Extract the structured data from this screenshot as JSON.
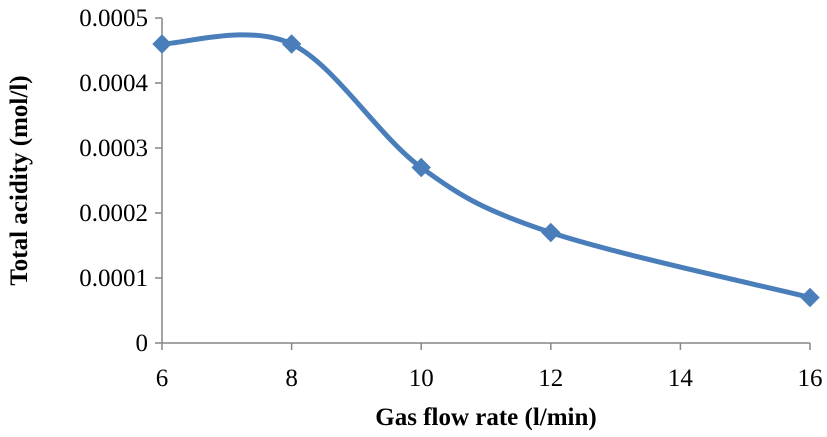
{
  "chart_data": {
    "type": "line",
    "title": "",
    "xlabel": "Gas flow rate (l/min)",
    "ylabel": "Total acidity (mol/l)",
    "xlim": [
      6,
      16
    ],
    "ylim": [
      0,
      0.0005
    ],
    "x_ticks": [
      6,
      8,
      10,
      12,
      14,
      16
    ],
    "x_tick_labels": [
      "6",
      "8",
      "10",
      "12",
      "14",
      "16"
    ],
    "y_ticks": [
      0,
      0.0001,
      0.0002,
      0.0003,
      0.0004,
      0.0005
    ],
    "y_tick_labels": [
      "0",
      "0.0001",
      "0.0002",
      "0.0003",
      "0.0004",
      "0.0005"
    ],
    "grid": false,
    "legend": "none",
    "smooth": true,
    "marker": "diamond",
    "series": [
      {
        "color": "#4a7ebb",
        "x": [
          6,
          8,
          10,
          12,
          16
        ],
        "values": [
          0.00046,
          0.00046,
          0.00027,
          0.00017,
          7e-05
        ]
      }
    ]
  }
}
